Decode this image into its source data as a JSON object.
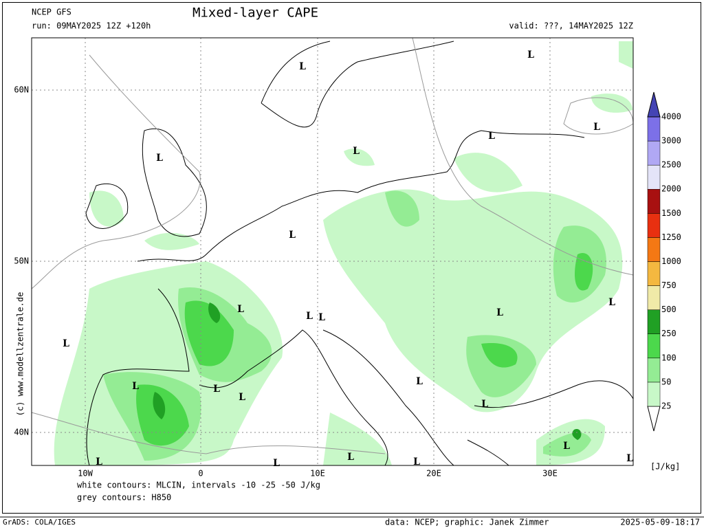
{
  "header": {
    "model": "NCEP GFS",
    "run": "run: 09MAY2025 12Z +120h",
    "title": "Mixed-layer CAPE",
    "valid": "valid: ???, 14MAY2025 12Z"
  },
  "map": {
    "lat_labels": [
      "60N",
      "50N",
      "40N"
    ],
    "lon_labels": [
      "10W",
      "0",
      "10E",
      "20E",
      "30E"
    ],
    "lows": [
      "L",
      "L",
      "L",
      "L",
      "L",
      "L",
      "L",
      "L",
      "L",
      "L",
      "L",
      "L",
      "L",
      "L",
      "L",
      "L",
      "L",
      "L",
      "L",
      "L",
      "L",
      "L",
      "L",
      "L"
    ],
    "credit": "(c) www.modellzentrale.de"
  },
  "legend": {
    "levels": [
      25,
      50,
      100,
      250,
      500,
      750,
      1000,
      1250,
      1500,
      2000,
      2500,
      3000,
      4000
    ],
    "colors": [
      "#ffffff",
      "#c8f8c8",
      "#94ec94",
      "#4cd84c",
      "#20a024",
      "#f0eaa8",
      "#f4b840",
      "#f47814",
      "#e83010",
      "#a81010",
      "#e4e4f8",
      "#b0a8f4",
      "#7c70e8",
      "#4444b4"
    ],
    "unit": "[J/kg]"
  },
  "footer": {
    "contours_white": "white contours: MLCIN, intervals -10 -25 -50 J/kg",
    "contours_grey": "grey contours: H850",
    "grads": "GrADS: COLA/IGES",
    "credits": "data: NCEP; graphic: Janek Zimmer",
    "timestamp": "2025-05-09-18:17"
  }
}
